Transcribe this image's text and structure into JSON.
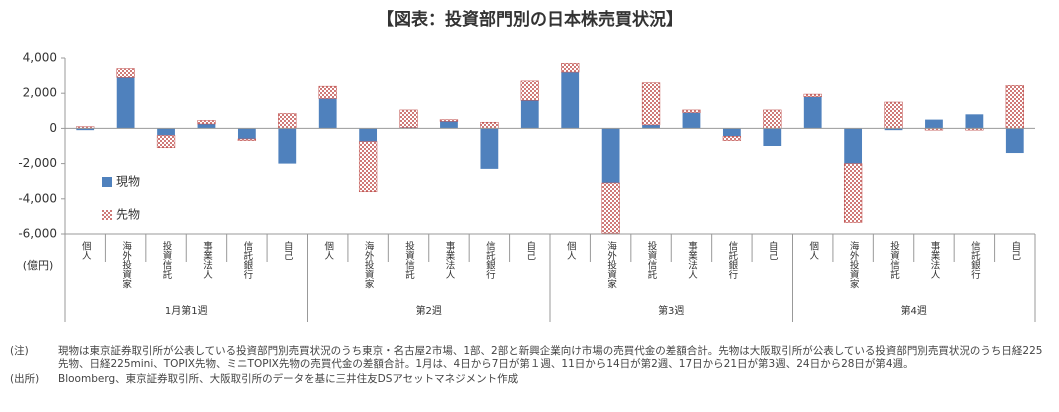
{
  "chart_data": {
    "type": "bar",
    "stacked": true,
    "title": "【図表：投資部門別の日本株売買状況】",
    "y_unit": "(億円)",
    "categories": [
      "個人",
      "海外投資家",
      "投資信託",
      "事業法人",
      "信託銀行",
      "自己",
      "個人",
      "海外投資家",
      "投資信託",
      "事業法人",
      "信託銀行",
      "自己",
      "個人",
      "海外投資家",
      "投資信託",
      "事業法人",
      "信託銀行",
      "自己",
      "個人",
      "海外投資家",
      "投資信託",
      "事業法人",
      "信託銀行",
      "自己"
    ],
    "groups": [
      "1月第1週",
      "第2週",
      "第3週",
      "第4週"
    ],
    "series": [
      {
        "name": "現物",
        "color": "#4f81bd",
        "pattern": "solid",
        "values": [
          -100,
          2900,
          -400,
          250,
          -600,
          -2000,
          1700,
          -750,
          50,
          400,
          -2300,
          1600,
          3200,
          -3100,
          200,
          900,
          -450,
          -1000,
          1800,
          -2000,
          -100,
          500,
          800,
          -1400
        ]
      },
      {
        "name": "先物",
        "color": "#c0504d",
        "pattern": "dots",
        "values": [
          100,
          500,
          -700,
          200,
          -100,
          850,
          700,
          -2850,
          1000,
          100,
          350,
          1100,
          500,
          -2850,
          2400,
          150,
          -250,
          1050,
          150,
          -3350,
          1500,
          -100,
          -100,
          2450
        ]
      }
    ],
    "ylim": [
      -6000,
      4000
    ],
    "yticks": [
      {
        "value": -6000,
        "label": "-6,000"
      },
      {
        "value": -4000,
        "label": "-4,000"
      },
      {
        "value": -2000,
        "label": "-2,000"
      },
      0,
      {
        "value": 2000,
        "label": "2,000"
      },
      {
        "value": 4000,
        "label": "4,000"
      }
    ],
    "legend": "left"
  },
  "notes": [
    {
      "label": "(注)",
      "text": "現物は東京証券取引所が公表している投資部門別売買状況のうち東京・名古屋2市場、1部、2部と新興企業向け市場の売買代金の差額合計。先物は大阪取引所が公表している投資部門別売買状況のうち日経225先物、日経225mini、TOPIX先物、ミニTOPIX先物の売買代金の差額合計。1月は、4日から7日が第１週、11日から14日が第2週、17日から21日が第3週、24日から28日が第4週。"
    },
    {
      "label": "(出所)",
      "text": "Bloomberg、東京証券取引所、大阪取引所のデータを基に三井住友DSアセットマネジメント作成"
    }
  ]
}
